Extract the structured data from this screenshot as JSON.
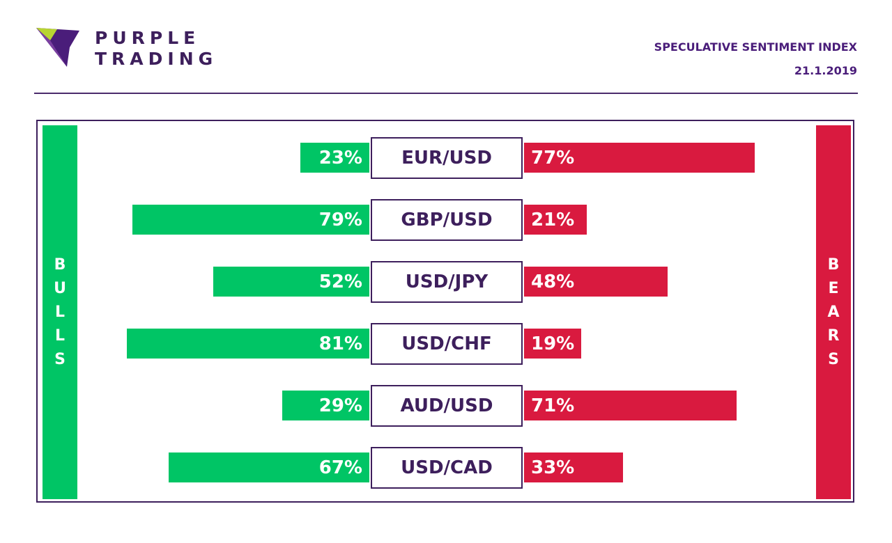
{
  "brand": {
    "line1": "PURPLE",
    "line2": "TRADING"
  },
  "header": {
    "title": "SPECULATIVE SENTIMENT INDEX",
    "date": "21.1.2019"
  },
  "labels": {
    "bulls": "BULLS",
    "bears": "BEARS"
  },
  "colors": {
    "bulls": "#00c565",
    "bears": "#d91a3f",
    "primary": "#3d1f5c"
  },
  "chart_data": {
    "type": "bar",
    "categories": [
      "EUR/USD",
      "GBP/USD",
      "USD/JPY",
      "USD/CHF",
      "AUD/USD",
      "USD/CAD"
    ],
    "series": [
      {
        "name": "BULLS",
        "values": [
          23,
          79,
          52,
          81,
          29,
          67
        ]
      },
      {
        "name": "BEARS",
        "values": [
          77,
          21,
          48,
          19,
          71,
          33
        ]
      }
    ],
    "value_labels": {
      "bulls": [
        "23%",
        "79%",
        "52%",
        "81%",
        "29%",
        "67%"
      ],
      "bears": [
        "77%",
        "21%",
        "48%",
        "19%",
        "71%",
        "33%"
      ]
    },
    "unit": "%"
  }
}
